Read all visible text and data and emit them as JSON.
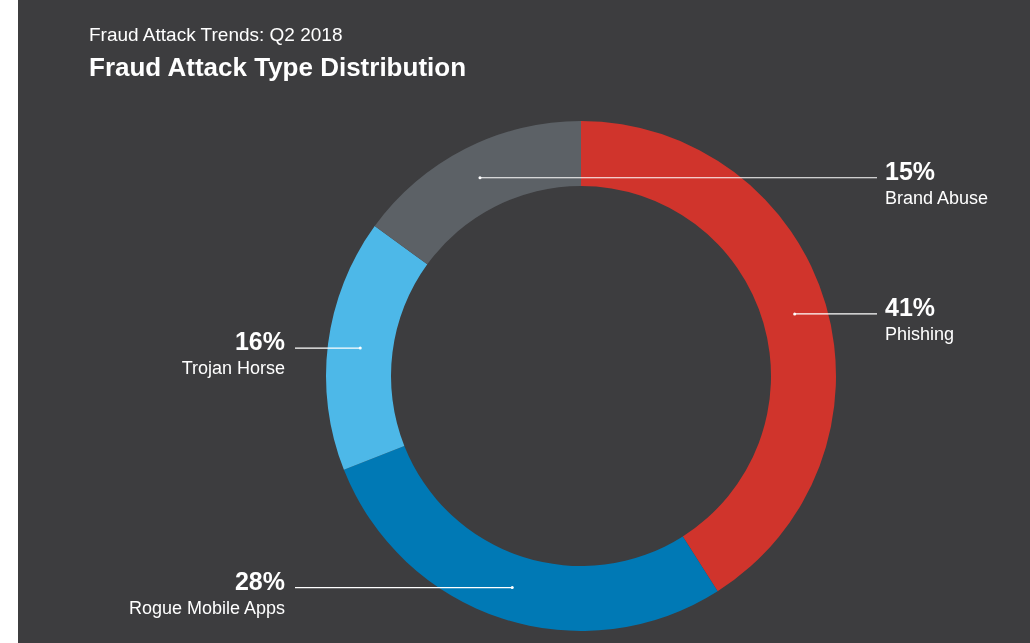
{
  "chart_data": {
    "type": "donut",
    "subtitle": "Fraud Attack Trends: Q2 2018",
    "title": "Fraud Attack Type Distribution",
    "categories": [
      "Phishing",
      "Rogue Mobile Apps",
      "Trojan Horse",
      "Brand Abuse"
    ],
    "values": [
      41,
      28,
      16,
      15
    ],
    "colors": [
      "#d0342c",
      "#0079b5",
      "#4db8e8",
      "#5c6166"
    ],
    "value_labels": [
      "41%",
      "28%",
      "16%",
      "15%"
    ],
    "legend": false
  }
}
